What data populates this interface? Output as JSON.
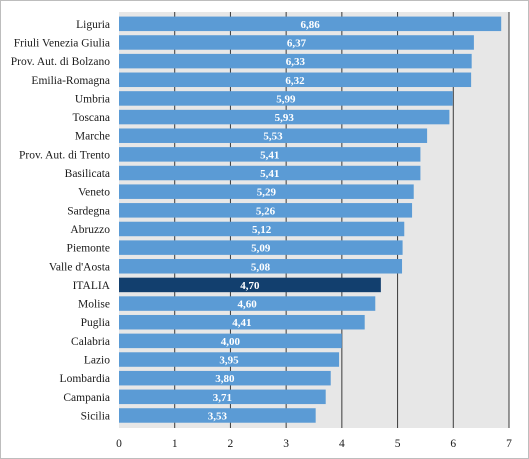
{
  "chart_data": {
    "type": "bar",
    "orientation": "horizontal",
    "title": "",
    "xlabel": "",
    "ylabel": "",
    "xlim": [
      0,
      7
    ],
    "xticks": [
      "0",
      "1",
      "2",
      "3",
      "4",
      "5",
      "6",
      "7"
    ],
    "grid": "vertical",
    "legend": "none",
    "categories": [
      "Liguria",
      "Friuli Venezia Giulia",
      "Prov. Aut. di Bolzano",
      "Emilia-Romagna",
      "Umbria",
      "Toscana",
      "Marche",
      "Prov. Aut. di Trento",
      "Basilicata",
      "Veneto",
      "Sardegna",
      "Abruzzo",
      "Piemonte",
      "Valle d'Aosta",
      "ITALIA",
      "Molise",
      "Puglia",
      "Calabria",
      "Lazio",
      "Lombardia",
      "Campania",
      "Sicilia"
    ],
    "values": [
      6.86,
      6.37,
      6.33,
      6.32,
      5.99,
      5.93,
      5.53,
      5.41,
      5.41,
      5.29,
      5.26,
      5.12,
      5.09,
      5.08,
      4.7,
      4.6,
      4.41,
      4.0,
      3.95,
      3.8,
      3.71,
      3.53
    ],
    "value_labels": [
      "6,86",
      "6,37",
      "6,33",
      "6,32",
      "5,99",
      "5,93",
      "5,53",
      "5,41",
      "5,41",
      "5,29",
      "5,26",
      "5,12",
      "5,09",
      "5,08",
      "4,70",
      "4,60",
      "4,41",
      "4,00",
      "3,95",
      "3,80",
      "3,71",
      "3,53"
    ],
    "highlight_category": "ITALIA",
    "colors": {
      "bar": "#5b9bd5",
      "highlight": "#123f6e",
      "plot_background": "#e7e7e7",
      "gridline": "#3a3a3a",
      "value_text": "#ffffff"
    }
  }
}
